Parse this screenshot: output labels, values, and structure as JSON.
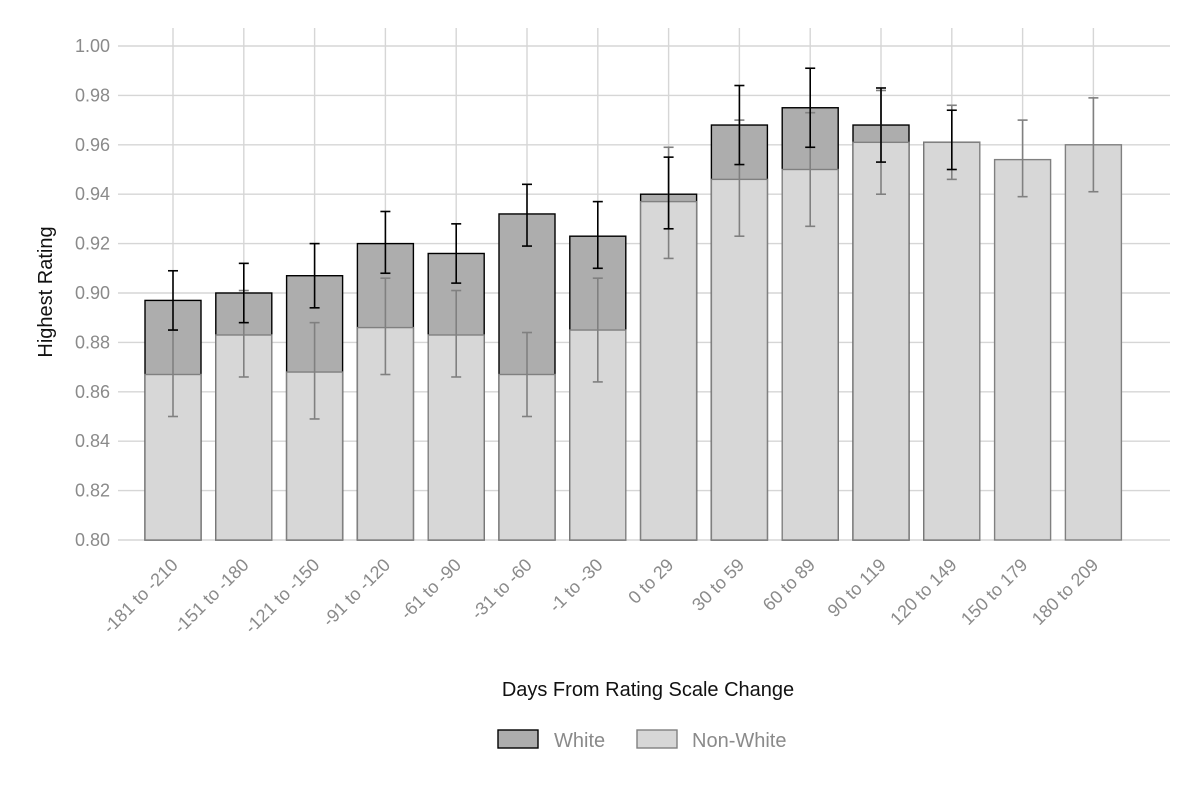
{
  "chart_data": {
    "type": "bar",
    "xlabel": "Days From Rating Scale Change",
    "ylabel": "Highest Rating",
    "ylim": [
      0.8,
      1.0
    ],
    "yticks": [
      "0.80",
      "0.82",
      "0.84",
      "0.86",
      "0.88",
      "0.90",
      "0.92",
      "0.94",
      "0.96",
      "0.98",
      "1.00"
    ],
    "grid": true,
    "legend_position": "bottom",
    "categories": [
      "-181 to -210",
      "-151 to -180",
      "-121 to -150",
      "-91 to -120",
      "-61 to -90",
      "-31 to -60",
      "-1 to -30",
      "0 to 29",
      "30 to 59",
      "60 to 89",
      "90 to 119",
      "120 to 149",
      "150 to 179",
      "180 to 209"
    ],
    "series": [
      {
        "name": "White",
        "color": "#adadad",
        "stroke": "#000000",
        "values": [
          0.897,
          0.9,
          0.907,
          0.92,
          0.916,
          0.932,
          0.923,
          0.94,
          0.968,
          0.975,
          0.968,
          0.961,
          null,
          null
        ],
        "error_low": [
          0.885,
          0.888,
          0.894,
          0.908,
          0.904,
          0.919,
          0.91,
          0.926,
          0.952,
          0.959,
          0.953,
          0.95,
          null,
          null
        ],
        "error_high": [
          0.909,
          0.912,
          0.92,
          0.933,
          0.928,
          0.944,
          0.937,
          0.955,
          0.984,
          0.991,
          0.983,
          0.974,
          null,
          null
        ]
      },
      {
        "name": "Non-White",
        "color": "#d7d7d7",
        "stroke": "#808080",
        "values": [
          0.867,
          0.883,
          0.868,
          0.886,
          0.883,
          0.867,
          0.885,
          0.937,
          0.946,
          0.95,
          0.961,
          0.961,
          0.954,
          0.96
        ],
        "error_low": [
          0.85,
          0.866,
          0.849,
          0.867,
          0.866,
          0.85,
          0.864,
          0.914,
          0.923,
          0.927,
          0.94,
          0.946,
          0.939,
          0.941
        ],
        "error_high": [
          0.885,
          0.901,
          0.888,
          0.906,
          0.901,
          0.884,
          0.906,
          0.959,
          0.97,
          0.973,
          0.982,
          0.976,
          0.97,
          0.979
        ]
      }
    ]
  }
}
